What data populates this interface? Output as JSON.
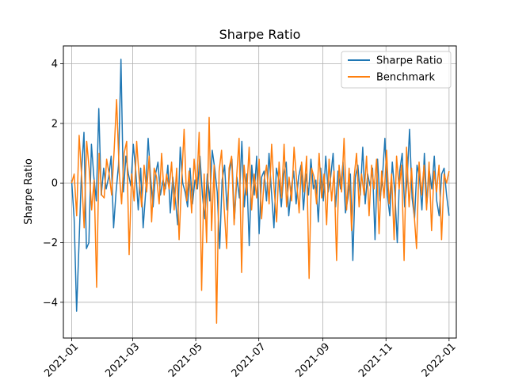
{
  "chart_data": {
    "type": "line",
    "title": "Sharpe Ratio",
    "xlabel": "",
    "ylabel": "Sharpe Ratio",
    "xlim": [
      "2020-12-24",
      "2022-01-08"
    ],
    "ylim": [
      -5.2,
      4.6
    ],
    "x_ticks": [
      "2021-01",
      "2021-03",
      "2021-05",
      "2021-07",
      "2021-09",
      "2021-11",
      "2022-01"
    ],
    "x_tick_dates": [
      "2021-01-01",
      "2021-03-01",
      "2021-05-01",
      "2021-07-01",
      "2021-09-01",
      "2021-11-01",
      "2022-01-01"
    ],
    "y_ticks": [
      -4,
      -2,
      0,
      2,
      4
    ],
    "grid": true,
    "legend_position": "upper right",
    "x_start": "2021-01-01",
    "x_end": "2022-01-01",
    "series": [
      {
        "name": "Sharpe Ratio",
        "color": "#1f77b4",
        "values": [
          0.1,
          -1.2,
          -4.3,
          -2.0,
          0.4,
          1.7,
          -2.2,
          -2.0,
          1.3,
          0.2,
          -0.6,
          2.5,
          -0.4,
          0.5,
          -0.2,
          0.2,
          0.9,
          -1.5,
          -0.3,
          0.6,
          4.15,
          -0.3,
          0.9,
          0.3,
          -0.1,
          1.3,
          0.4,
          -0.9,
          0.5,
          -1.5,
          -0.3,
          1.5,
          0.2,
          -0.8,
          0.3,
          0.7,
          -0.4,
          0.1,
          -0.2,
          0.6,
          -1.0,
          0.2,
          -0.5,
          -1.4,
          1.2,
          0.0,
          -0.3,
          -0.8,
          0.5,
          -0.7,
          0.1,
          -0.2,
          0.9,
          -0.4,
          -1.2,
          0.3,
          -0.6,
          1.1,
          0.5,
          -0.3,
          -2.2,
          0.1,
          0.6,
          -0.9,
          0.4,
          0.8,
          -1.2,
          0.2,
          -0.5,
          1.4,
          -0.8,
          0.3,
          -2.1,
          0.6,
          -0.4,
          0.9,
          -1.7,
          0.2,
          0.4,
          -0.6,
          1.0,
          -0.3,
          -1.5,
          0.5,
          0.1,
          -0.8,
          0.3,
          0.7,
          -1.1,
          -0.2,
          0.4,
          -0.7,
          0.2,
          0.6,
          -0.9,
          0.3,
          -0.4,
          0.8,
          -0.2,
          0.1,
          -1.3,
          0.5,
          -0.6,
          0.9,
          -0.3,
          0.2,
          1.0,
          -0.8,
          0.4,
          -0.2,
          0.7,
          -1.0,
          -0.5,
          0.3,
          -2.6,
          0.2,
          0.6,
          -0.4,
          1.2,
          -0.7,
          0.3,
          -0.1,
          0.5,
          -1.9,
          0.8,
          -0.6,
          0.2,
          1.5,
          -0.4,
          -1.1,
          0.7,
          -0.3,
          -2.0,
          0.4,
          1.0,
          -0.8,
          0.1,
          1.8,
          -0.5,
          -1.2,
          0.6,
          0.2,
          -0.9,
          1.0,
          -0.7,
          0.4,
          -0.2,
          0.9,
          -0.6,
          -1.1,
          0.3,
          0.5,
          -0.4,
          -1.1
        ]
      },
      {
        "name": "Benchmark",
        "color": "#ff7f0e",
        "values": [
          0.0,
          0.3,
          -1.1,
          1.6,
          0.2,
          -1.5,
          1.4,
          0.5,
          -0.9,
          0.1,
          -3.5,
          1.0,
          -0.4,
          -0.5,
          0.8,
          0.3,
          -0.4,
          1.1,
          2.8,
          0.4,
          -0.7,
          1.0,
          1.4,
          -2.4,
          0.3,
          -0.6,
          1.4,
          0.2,
          -0.8,
          0.6,
          -0.3,
          0.9,
          -1.3,
          0.5,
          0.2,
          -0.7,
          1.0,
          -0.4,
          0.3,
          -0.2,
          0.7,
          -0.9,
          0.5,
          -1.9,
          0.1,
          1.8,
          -0.6,
          0.4,
          -1.0,
          0.8,
          -0.2,
          1.7,
          -3.6,
          0.3,
          -2.0,
          2.2,
          -1.6,
          0.6,
          -4.7,
          0.4,
          1.1,
          -0.8,
          -2.2,
          0.5,
          0.9,
          -1.4,
          0.2,
          1.5,
          -3.0,
          0.6,
          -0.4,
          1.2,
          -0.9,
          0.3,
          -0.5,
          0.8,
          -1.2,
          0.1,
          0.6,
          -0.7,
          1.3,
          -0.2,
          -1.3,
          0.7,
          -0.5,
          1.3,
          -0.8,
          0.2,
          -0.6,
          1.2,
          0.1,
          -1.0,
          0.7,
          -0.3,
          0.9,
          -3.2,
          0.5,
          0.2,
          -0.7,
          1.0,
          -0.5,
          0.3,
          -1.4,
          0.8,
          -0.6,
          0.4,
          -2.6,
          0.6,
          -0.3,
          1.5,
          -0.9,
          0.5,
          -1.6,
          0.2,
          1.0,
          -0.8,
          0.3,
          -0.4,
          0.9,
          -1.1,
          0.6,
          -0.2,
          0.8,
          -1.7,
          0.4,
          -0.5,
          1.1,
          -0.7,
          0.3,
          -1.9,
          0.9,
          -0.2,
          0.6,
          -2.6,
          1.2,
          -0.8,
          0.5,
          -1.0,
          -2.2,
          0.7,
          -0.4,
          0.6,
          -0.9,
          0.7,
          -1.6,
          0.4,
          -0.3,
          0.6,
          -1.9,
          0.3,
          0.0,
          0.4
        ]
      }
    ]
  }
}
